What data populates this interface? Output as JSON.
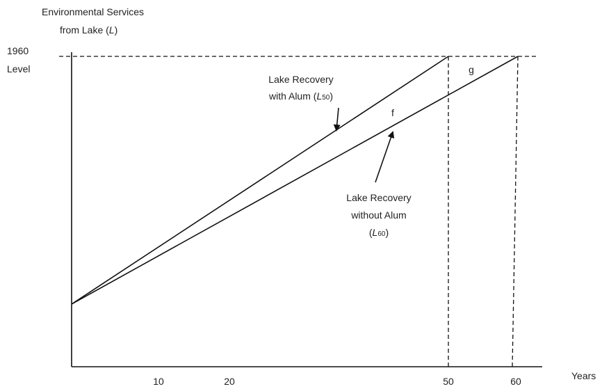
{
  "y_axis_label": {
    "line1": "Environmental Services",
    "line2_pre": "from Lake  (",
    "line2_italic": "L",
    "line2_post": ")"
  },
  "level_label": [
    "1960",
    "Level"
  ],
  "x_axis_label": "Years",
  "x_ticks": [
    "10",
    "20",
    "50",
    "60"
  ],
  "with_alum": {
    "line1": "Lake Recovery",
    "line2_pre": "with Alum (",
    "italic": "L",
    "sub": "50",
    "post": ")"
  },
  "without_alum": {
    "line1": "Lake Recovery",
    "line2": "without Alum",
    "pre": "(",
    "italic": "L",
    "sub": "60",
    "post": ")"
  },
  "region_f": "f",
  "region_g": "g"
}
